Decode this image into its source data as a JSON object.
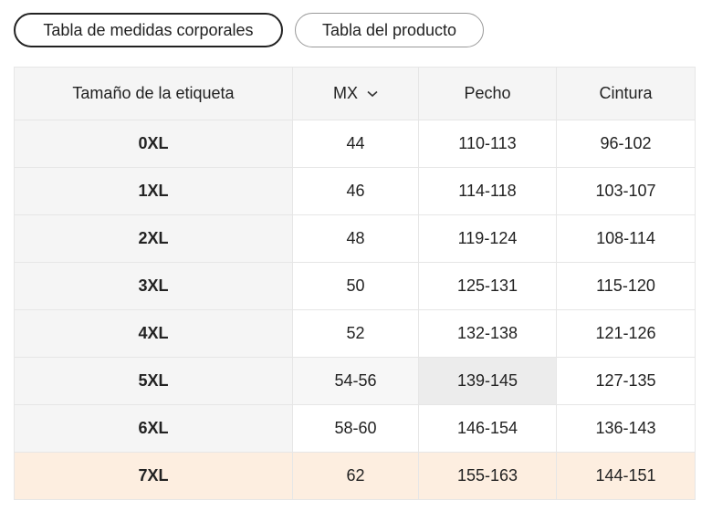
{
  "tabs": [
    "Tabla de medidas corporales",
    "Tabla del producto"
  ],
  "table": {
    "headers": [
      "Tamaño de la etiqueta",
      "MX",
      "Pecho",
      "Cintura"
    ],
    "rows": [
      [
        "0XL",
        "44",
        "110-113",
        "96-102"
      ],
      [
        "1XL",
        "46",
        "114-118",
        "103-107"
      ],
      [
        "2XL",
        "48",
        "119-124",
        "108-114"
      ],
      [
        "3XL",
        "50",
        "125-131",
        "115-120"
      ],
      [
        "4XL",
        "52",
        "132-138",
        "121-126"
      ],
      [
        "5XL",
        "54-56",
        "139-145",
        "127-135"
      ],
      [
        "6XL",
        "58-60",
        "146-154",
        "136-143"
      ],
      [
        "7XL",
        "62",
        "155-163",
        "144-151"
      ]
    ]
  }
}
